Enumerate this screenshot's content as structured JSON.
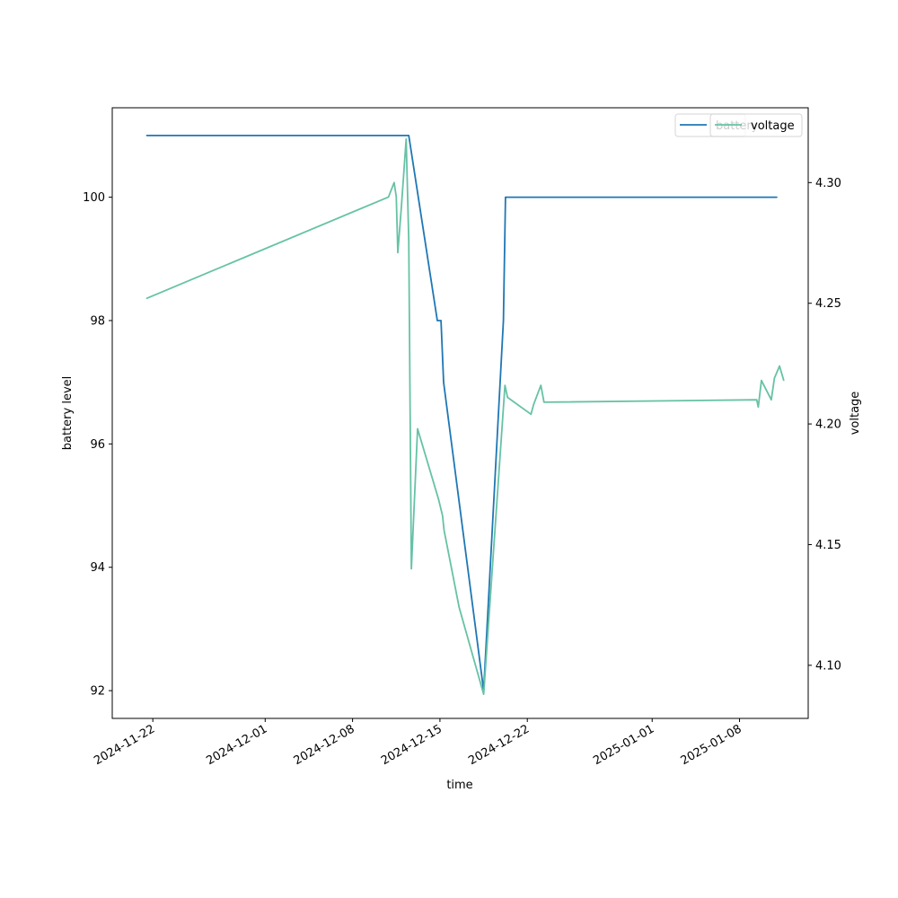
{
  "chart_data": {
    "type": "line",
    "title": "",
    "xlabel": "time",
    "ylabel_left": "battery level",
    "ylabel_right": "voltage",
    "x_ticks": [
      "2024-11-22",
      "2024-12-01",
      "2024-12-08",
      "2024-12-15",
      "2024-12-22",
      "2025-01-01",
      "2025-01-08"
    ],
    "y_left_ticks": [
      92,
      94,
      96,
      98,
      100
    ],
    "y_right_ticks": [
      "4.10",
      "4.15",
      "4.20",
      "4.25",
      "4.30"
    ],
    "xlim": [
      "2024-11-18T18:00",
      "2025-01-13T12:00"
    ],
    "ylim_left": [
      91.55,
      101.45
    ],
    "ylim_right": [
      4.078,
      4.331
    ],
    "grid": false,
    "legend_location": "top-right",
    "series": [
      {
        "name": "battery",
        "axis": "left",
        "color": "#1f77b4",
        "points": [
          [
            "2024-11-21T12:00",
            101
          ],
          [
            "2024-12-12T12:00",
            101
          ],
          [
            "2024-12-14T19:00",
            98
          ],
          [
            "2024-12-15T02:00",
            98
          ],
          [
            "2024-12-15T07:00",
            97
          ],
          [
            "2024-12-18T12:00",
            92
          ],
          [
            "2024-12-20T02:00",
            98
          ],
          [
            "2024-12-20T06:00",
            100
          ],
          [
            "2025-01-11T00:00",
            100
          ]
        ]
      },
      {
        "name": "voltage",
        "axis": "right",
        "color": "#66c2a5",
        "points": [
          [
            "2024-11-21T12:00",
            4.252
          ],
          [
            "2024-12-10T21:00",
            4.294
          ],
          [
            "2024-12-11T08:00",
            4.3
          ],
          [
            "2024-12-11T12:00",
            4.294
          ],
          [
            "2024-12-11T15:00",
            4.271
          ],
          [
            "2024-12-11T22:00",
            4.29
          ],
          [
            "2024-12-12T07:00",
            4.318
          ],
          [
            "2024-12-12T12:00",
            4.276
          ],
          [
            "2024-12-12T17:00",
            4.14
          ],
          [
            "2024-12-13T05:00",
            4.198
          ],
          [
            "2024-12-14T21:00",
            4.169
          ],
          [
            "2024-12-15T05:00",
            4.162
          ],
          [
            "2024-12-15T08:00",
            4.156
          ],
          [
            "2024-12-16T13:00",
            4.124
          ],
          [
            "2024-12-18T12:00",
            4.088
          ],
          [
            "2024-12-20T05:00",
            4.216
          ],
          [
            "2024-12-20T10:00",
            4.211
          ],
          [
            "2024-12-22T07:00",
            4.204
          ],
          [
            "2024-12-22T12:00",
            4.208
          ],
          [
            "2024-12-23T02:00",
            4.216
          ],
          [
            "2024-12-23T08:00",
            4.209
          ],
          [
            "2025-01-09T09:00",
            4.21
          ],
          [
            "2025-01-09T12:00",
            4.207
          ],
          [
            "2025-01-09T18:00",
            4.218
          ],
          [
            "2025-01-10T13:00",
            4.21
          ],
          [
            "2025-01-10T19:00",
            4.219
          ],
          [
            "2025-01-11T05:00",
            4.224
          ],
          [
            "2025-01-11T13:00",
            4.218
          ]
        ]
      }
    ]
  }
}
